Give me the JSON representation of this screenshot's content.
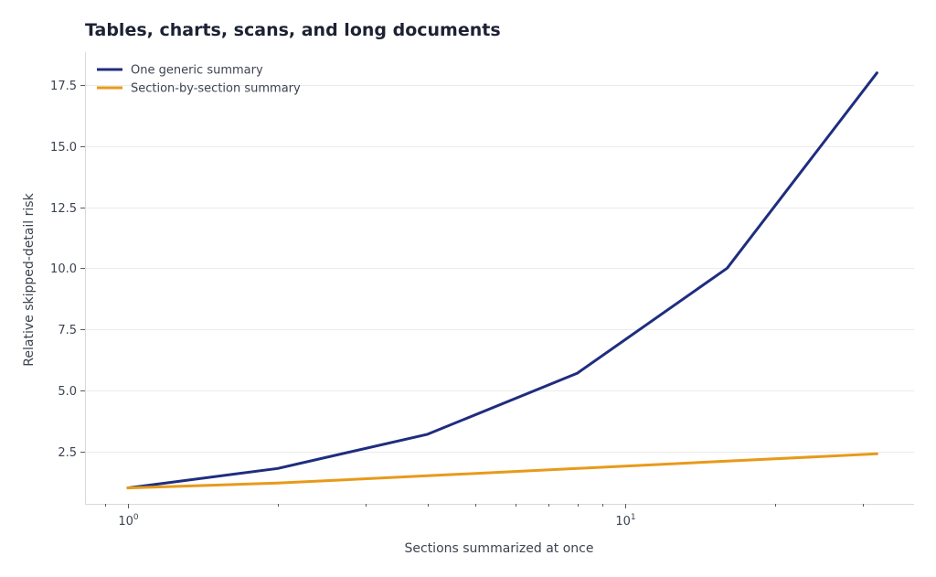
{
  "chart_data": {
    "type": "line",
    "title": "Tables, charts, scans, and long documents",
    "xlabel": "Sections summarized at once",
    "ylabel": "Relative skipped-detail risk",
    "xscale": "log",
    "xlim": [
      0.82,
      38
    ],
    "ylim": [
      0.35,
      18.85
    ],
    "x": [
      1,
      2,
      4,
      8,
      16,
      32
    ],
    "xticks": [
      {
        "value": 1,
        "base": "10",
        "exp": "0"
      },
      {
        "value": 10,
        "base": "10",
        "exp": "1"
      }
    ],
    "yticks": [
      2.5,
      5.0,
      7.5,
      10.0,
      12.5,
      15.0,
      17.5
    ],
    "ytick_labels": [
      "2.5",
      "5.0",
      "7.5",
      "10.0",
      "12.5",
      "15.0",
      "17.5"
    ],
    "grid": "horizontal",
    "legend_position": "top-left",
    "series": [
      {
        "name": "One generic summary",
        "color": "#1f2d7f",
        "values": [
          1.0,
          1.8,
          3.2,
          5.7,
          10.0,
          18.0
        ]
      },
      {
        "name": "Section-by-section summary",
        "color": "#e89a1a",
        "values": [
          1.0,
          1.2,
          1.5,
          1.8,
          2.1,
          2.4
        ]
      }
    ]
  }
}
